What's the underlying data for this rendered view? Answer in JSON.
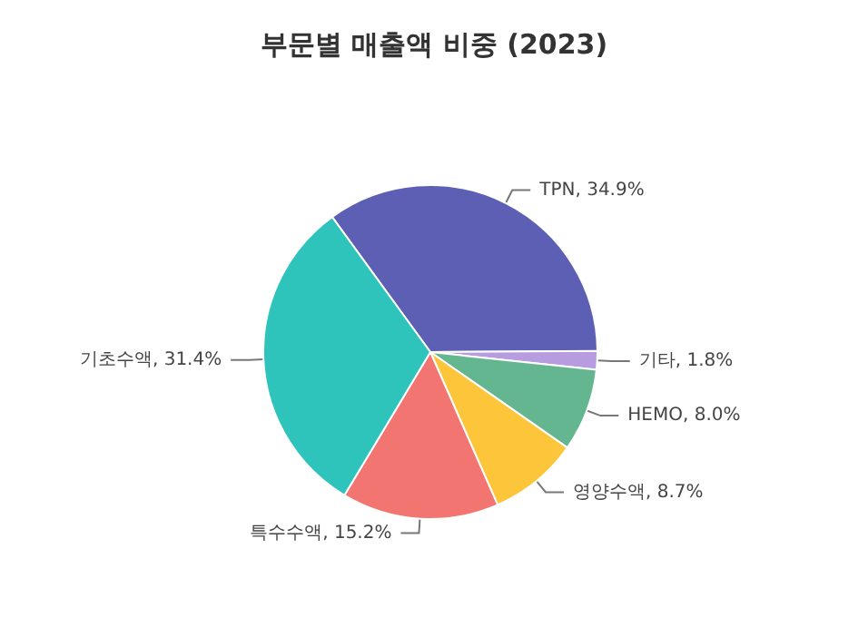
{
  "chart_data": {
    "type": "pie",
    "title": "부문별 매출액 비중 (2023)",
    "categories": [
      "TPN",
      "기타",
      "HEMO",
      "영양수액",
      "특수수액",
      "기초수액"
    ],
    "values": [
      34.9,
      1.8,
      8.0,
      8.7,
      15.2,
      31.4
    ],
    "colors": [
      "#5c5fb4",
      "#b79de0",
      "#64b690",
      "#fdc53a",
      "#f27572",
      "#2ec4bc"
    ],
    "value_labels": [
      ", 34.9%",
      ", 1.8%",
      ", 8.0%",
      ", 8.7%",
      ", 15.2%",
      ", 31.4%"
    ],
    "legend": false
  }
}
